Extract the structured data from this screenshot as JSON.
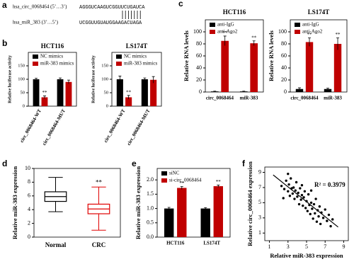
{
  "panel_labels": [
    "a",
    "b",
    "c",
    "d",
    "e",
    "f"
  ],
  "sequences": {
    "rows": [
      {
        "name": "hsa_circ_0068464 (5’…3’)",
        "sequence": "AGGGUCAAGUCGGUUCUGAUCA"
      },
      {
        "name": "hsa_miR_383 (3’…5’)",
        "sequence": "UCGGUUGUAUGGAAGACUAGA"
      }
    ]
  },
  "chart_data": [
    {
      "type": "bar",
      "title": "HCT116",
      "y_label": "Relative luciferase activity",
      "categories": [
        "circ_0068464-WT",
        "circ_0068464-MUT"
      ],
      "series": [
        {
          "name": "NC mimics",
          "color": "#000000",
          "values": [
            100,
            100
          ],
          "errors": [
            4,
            5
          ],
          "significance": [
            null,
            null
          ]
        },
        {
          "name": "miR-383 mimics",
          "color": "#c00000",
          "values": [
            33,
            90
          ],
          "errors": [
            5,
            7
          ],
          "significance": [
            "**",
            null
          ]
        }
      ],
      "ylim": [
        0,
        200
      ],
      "yticks": [
        0,
        50,
        100,
        150
      ]
    },
    {
      "type": "bar",
      "title": "LS174T",
      "y_label": "Relative luciferase activity",
      "categories": [
        "circ_0068464-WT",
        "circ_0068464-MUT"
      ],
      "series": [
        {
          "name": "NC mimics",
          "color": "#000000",
          "values": [
            100,
            100
          ],
          "errors": [
            12,
            5
          ],
          "significance": [
            null,
            null
          ]
        },
        {
          "name": "miR-383 mimics",
          "color": "#c00000",
          "values": [
            33,
            98
          ],
          "errors": [
            7,
            12
          ],
          "significance": [
            "**",
            null
          ]
        }
      ],
      "ylim": [
        0,
        200
      ],
      "yticks": [
        0,
        50,
        100,
        150
      ]
    },
    {
      "type": "bar",
      "title": "HCT116",
      "y_label": "Relative RNA levels",
      "categories": [
        "circ_0068464",
        "miR-383"
      ],
      "series": [
        {
          "name": "anti-IgG",
          "color": "#000000",
          "values": [
            1,
            1
          ],
          "errors": [
            0.5,
            0.5
          ],
          "significance": [
            null,
            null
          ]
        },
        {
          "name": "anti-Ago2",
          "color": "#c00000",
          "values": [
            85,
            81
          ],
          "errors": [
            8,
            4
          ],
          "significance": [
            "**",
            "**"
          ]
        }
      ],
      "ylim": [
        0,
        120
      ],
      "yticks": [
        0,
        20,
        40,
        60,
        80,
        100
      ]
    },
    {
      "type": "bar",
      "title": "LS174T",
      "y_label": "Relative RNA levels",
      "categories": [
        "circ_0068464",
        "miR-383"
      ],
      "series": [
        {
          "name": "anti-IgG",
          "color": "#000000",
          "values": [
            5,
            5
          ],
          "errors": [
            2,
            1.5
          ],
          "significance": [
            null,
            null
          ]
        },
        {
          "name": "anti-Ago2",
          "color": "#c00000",
          "values": [
            83,
            80
          ],
          "errors": [
            7,
            10
          ],
          "significance": [
            "**",
            "**"
          ]
        }
      ],
      "ylim": [
        0,
        120
      ],
      "yticks": [
        0,
        20,
        40,
        60,
        80,
        100
      ]
    },
    {
      "type": "box",
      "y_label": "Relative miR-383 expression",
      "categories": [
        "Normal",
        "CRC"
      ],
      "colors": [
        "#000000",
        "#e00000"
      ],
      "boxes": [
        {
          "min": 3.7,
          "q1": 5.2,
          "median": 5.9,
          "q3": 6.6,
          "max": 8.7
        },
        {
          "min": 1.0,
          "q1": 3.4,
          "median": 4.1,
          "q3": 4.8,
          "max": 7.3
        }
      ],
      "significance": [
        null,
        "**"
      ],
      "ylim": [
        0,
        10
      ],
      "yticks": [
        0,
        2,
        4,
        6,
        8,
        10
      ]
    },
    {
      "type": "bar",
      "y_label": "Relative miR-383 expression",
      "categories": [
        "HCT116",
        "LS174T"
      ],
      "series": [
        {
          "name": "siNC",
          "color": "#000000",
          "values": [
            1.0,
            1.0
          ],
          "errors": [
            0.04,
            0.03
          ],
          "significance": [
            null,
            null
          ]
        },
        {
          "name": "si-circ_0068464",
          "color": "#c00000",
          "values": [
            1.72,
            1.78
          ],
          "errors": [
            0.05,
            0.04
          ],
          "significance": [
            "**",
            "**"
          ]
        }
      ],
      "ylim": [
        0,
        2.4
      ],
      "yticks": [
        {
          "value": 0,
          "label": "0.0"
        },
        {
          "value": 0.5,
          "label": "0.5"
        },
        {
          "value": 1,
          "label": "1.0"
        },
        {
          "value": 1.5,
          "label": "1.5"
        },
        {
          "value": 2,
          "label": "2.0"
        }
      ]
    },
    {
      "type": "scatter",
      "x_label": "Relative miR-383 expression",
      "y_label": "Relative circ_0068464 expression",
      "annotation": "R² = 0.3979",
      "color": "#000000",
      "x": [
        2.3,
        2.6,
        2.8,
        3.0,
        3.1,
        3.2,
        3.3,
        3.4,
        3.5,
        3.6,
        3.7,
        3.8,
        3.9,
        4.0,
        4.1,
        4.2,
        4.3,
        4.4,
        4.5,
        4.6,
        4.7,
        4.8,
        4.9,
        5.0,
        5.1,
        5.2,
        5.3,
        5.4,
        5.5,
        5.6,
        5.7,
        5.8,
        5.9,
        6.0,
        6.1,
        6.2,
        6.3,
        6.4,
        6.5,
        6.6,
        6.8,
        7.0,
        7.2,
        7.4,
        7.6,
        7.8,
        3.0,
        2.5,
        4.5,
        5.5
      ],
      "y": [
        7.2,
        6.8,
        7.9,
        6.5,
        7.4,
        5.9,
        8.2,
        6.9,
        6.2,
        7.0,
        5.5,
        6.6,
        7.7,
        5.8,
        6.3,
        4.8,
        6.9,
        5.4,
        6.0,
        4.6,
        5.7,
        6.5,
        4.3,
        5.2,
        3.9,
        6.1,
        4.7,
        3.5,
        5.0,
        4.2,
        2.9,
        4.8,
        3.6,
        5.5,
        2.5,
        4.0,
        3.2,
        4.5,
        2.2,
        3.7,
        3.0,
        4.1,
        2.6,
        3.4,
        1.9,
        2.8,
        8.8,
        5.6,
        7.3,
        6.6
      ],
      "xlim": [
        0.5,
        9.5
      ],
      "ylim": [
        0,
        9.7
      ],
      "xticks": [
        1,
        3,
        5,
        7,
        9
      ],
      "yticks": [
        1,
        3,
        5,
        7,
        9
      ]
    }
  ]
}
